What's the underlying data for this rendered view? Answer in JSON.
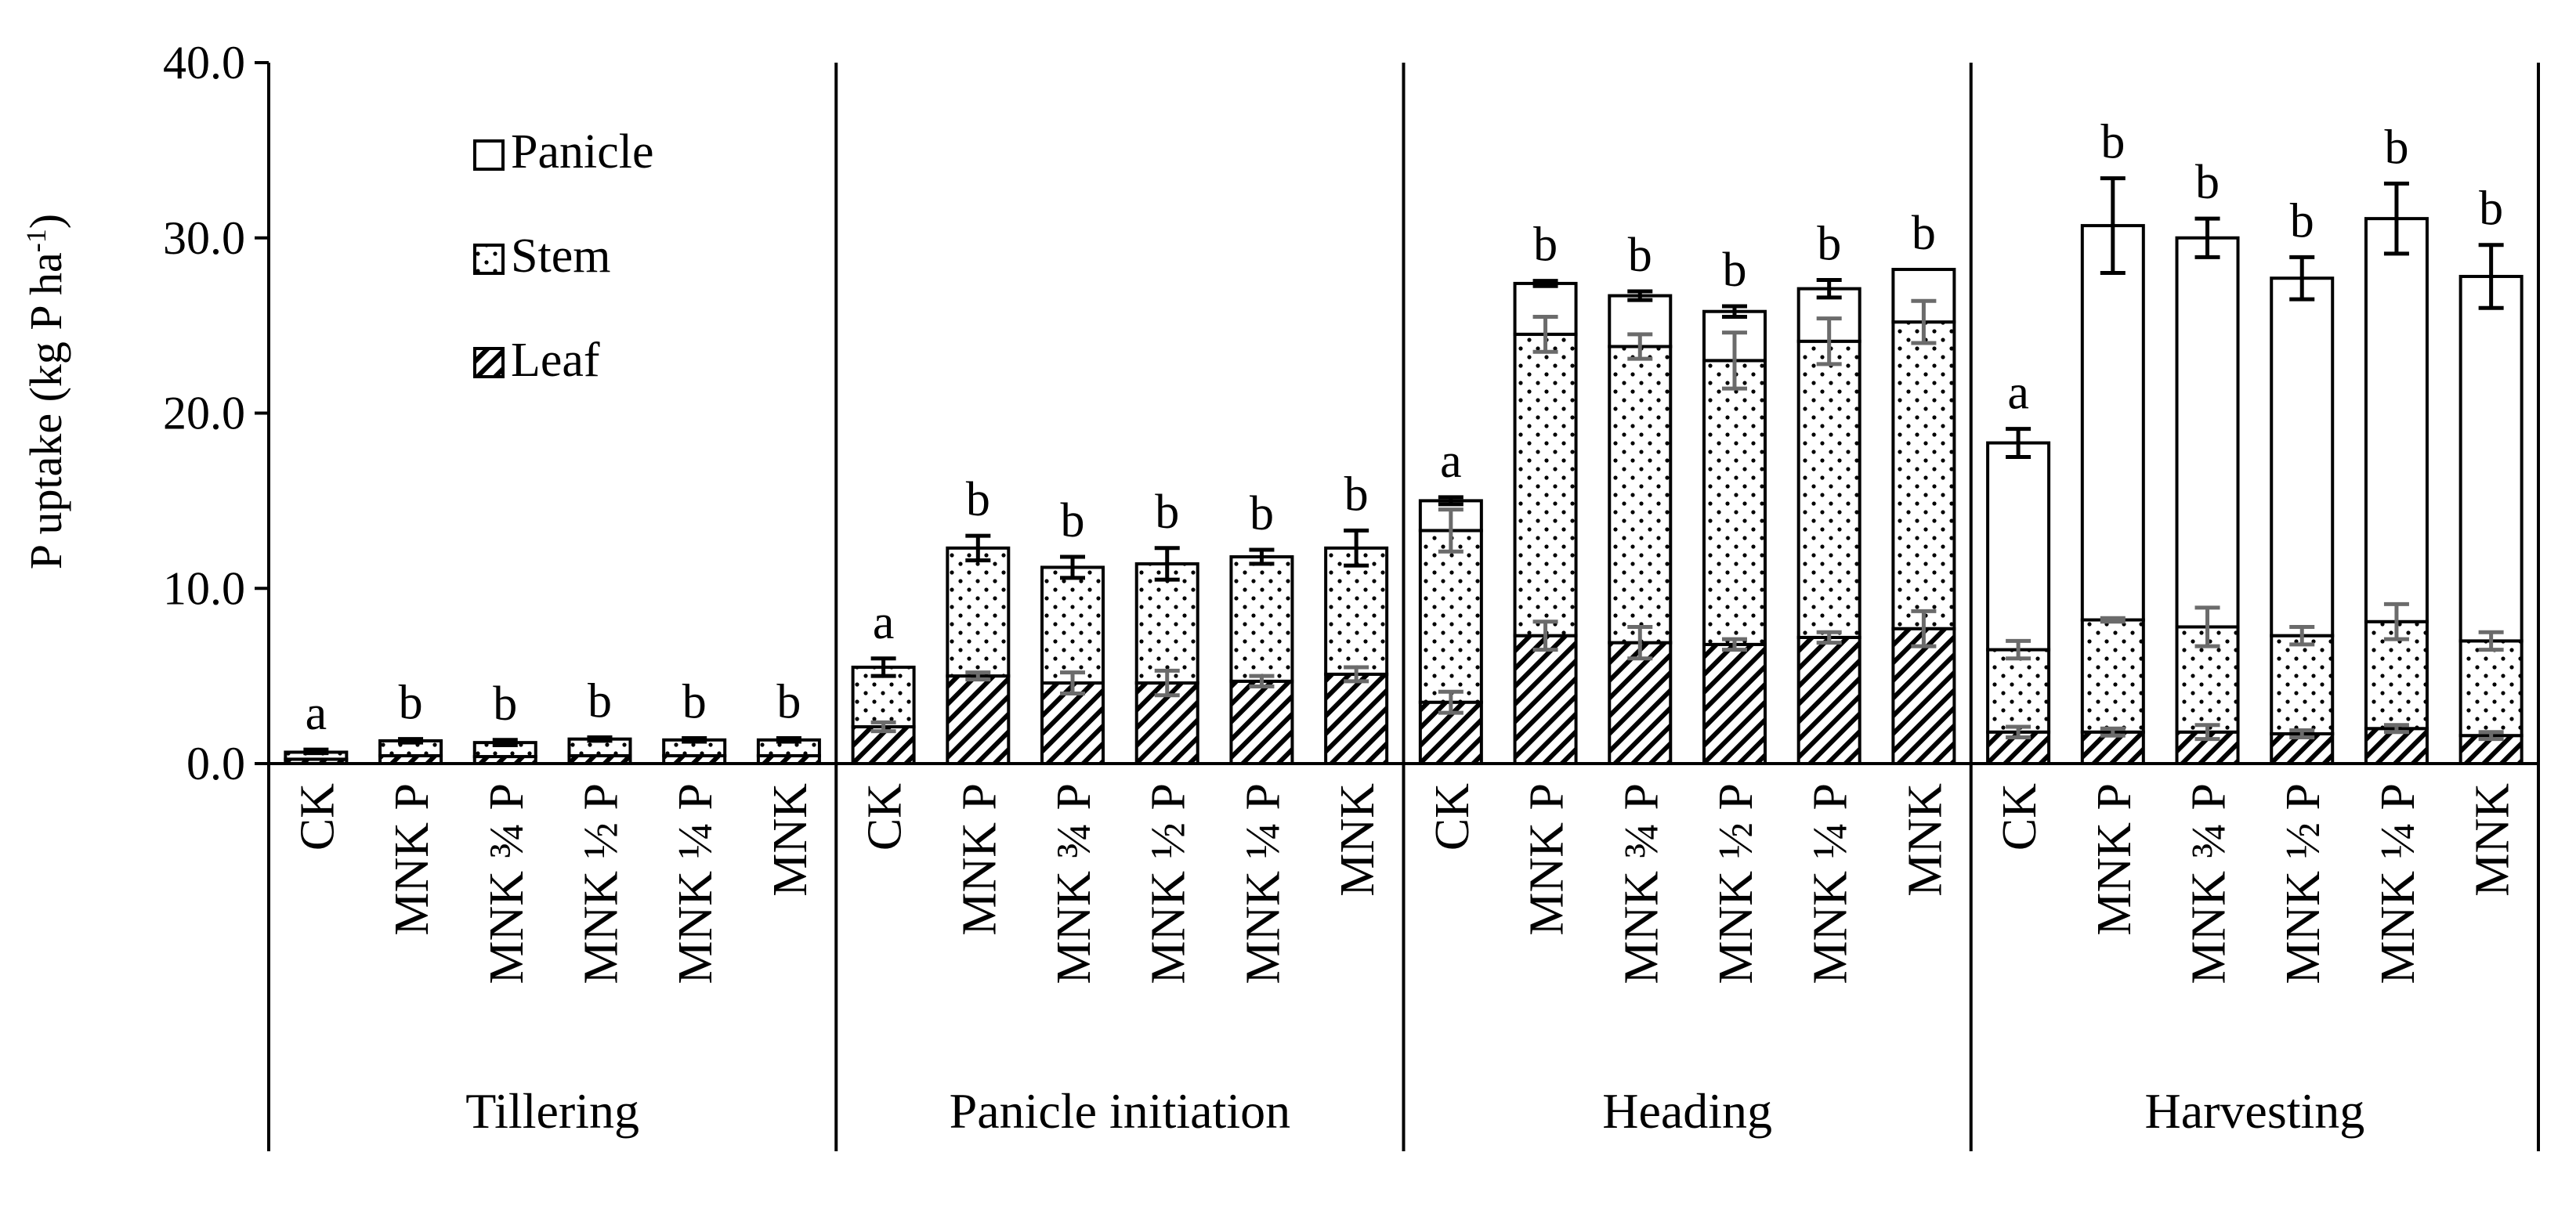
{
  "chart_data": {
    "type": "bar",
    "stacked": true,
    "title": "",
    "xlabel": "",
    "ylabel": "P uptake (kg P ha",
    "ylabel_sup": "-1",
    "ylabel_close": ")",
    "ylim": [
      0,
      40
    ],
    "yticks": [
      "0.0",
      "10.0",
      "20.0",
      "30.0",
      "40.0"
    ],
    "ytick_values": [
      0,
      10,
      20,
      30,
      40
    ],
    "legend": [
      "Panicle",
      "Stem",
      "Leaf"
    ],
    "groups": [
      {
        "name": "Tillering",
        "categories": [
          "CK",
          "MNK P",
          "MNK ¾ P",
          "MNK ½ P",
          "MNK ¼ P",
          "MNK"
        ],
        "leaf": [
          0.25,
          0.45,
          0.4,
          0.45,
          0.45,
          0.45
        ],
        "stem": [
          0.4,
          0.85,
          0.8,
          0.95,
          0.9,
          0.9
        ],
        "panicle": [
          0,
          0,
          0,
          0,
          0,
          0
        ],
        "total": [
          0.7,
          1.3,
          1.2,
          1.4,
          1.35,
          1.35
        ],
        "err_total": [
          0.1,
          0.1,
          0.15,
          0.1,
          0.1,
          0.1
        ],
        "err_leaf": [
          0,
          0,
          0,
          0,
          0,
          0
        ],
        "letters": [
          "a",
          "b",
          "b",
          "b",
          "b",
          "b"
        ]
      },
      {
        "name": "Panicle initiation",
        "categories": [
          "CK",
          "MNK P",
          "MNK ¾ P",
          "MNK ½ P",
          "MNK ¼ P",
          "MNK"
        ],
        "leaf": [
          2.1,
          5.0,
          4.6,
          4.6,
          4.7,
          5.1
        ],
        "stem": [
          3.4,
          7.3,
          6.6,
          6.8,
          7.1,
          7.2
        ],
        "panicle": [
          0,
          0,
          0,
          0,
          0,
          0
        ],
        "total": [
          5.5,
          12.3,
          11.2,
          11.4,
          11.8,
          12.3
        ],
        "err_total": [
          0.5,
          0.7,
          0.6,
          0.9,
          0.4,
          1.0
        ],
        "err_leaf": [
          0.25,
          0.2,
          0.6,
          0.7,
          0.3,
          0.4
        ],
        "letters": [
          "a",
          "b",
          "b",
          "b",
          "b",
          "b"
        ]
      },
      {
        "name": "Heading",
        "categories": [
          "CK",
          "MNK P",
          "MNK ¾ P",
          "MNK ½ P",
          "MNK ¼ P",
          "MNK"
        ],
        "leaf": [
          3.5,
          7.3,
          6.9,
          6.8,
          7.2,
          7.7
        ],
        "stem": [
          9.8,
          17.2,
          16.9,
          16.2,
          16.9,
          17.5
        ],
        "panicle": [
          1.7,
          2.9,
          2.9,
          2.8,
          3.0,
          3.0
        ],
        "total": [
          15.0,
          27.4,
          26.7,
          25.8,
          27.1,
          28.2
        ],
        "err_total": [
          0.2,
          0.15,
          0.25,
          0.3,
          0.5,
          0
        ],
        "err_stem": [
          1.2,
          1.0,
          0.7,
          1.6,
          1.3,
          1.2
        ],
        "err_leaf": [
          0.6,
          0.8,
          0.9,
          0.3,
          0.3,
          1.0
        ],
        "letters": [
          "a",
          "b",
          "b",
          "b",
          "b",
          "b"
        ]
      },
      {
        "name": "Harvesting",
        "categories": [
          "CK",
          "MNK P",
          "MNK ¾ P",
          "MNK ½ P",
          "MNK ¼ P",
          "MNK"
        ],
        "leaf": [
          1.8,
          1.8,
          1.8,
          1.7,
          2.0,
          1.6
        ],
        "stem": [
          4.7,
          6.4,
          6.0,
          5.6,
          6.1,
          5.4
        ],
        "panicle": [
          11.8,
          22.5,
          22.2,
          20.4,
          23.0,
          20.8
        ],
        "total": [
          18.3,
          30.7,
          30.0,
          27.7,
          31.1,
          27.8
        ],
        "err_total": [
          0.8,
          2.7,
          1.1,
          1.2,
          2.0,
          1.8
        ],
        "err_stem": [
          0.5,
          0.1,
          1.1,
          0.5,
          1.0,
          0.5
        ],
        "err_leaf": [
          0.3,
          0.2,
          0.4,
          0.2,
          0.2,
          0.2
        ],
        "letters": [
          "a",
          "b",
          "b",
          "b",
          "b",
          "b"
        ]
      }
    ]
  }
}
